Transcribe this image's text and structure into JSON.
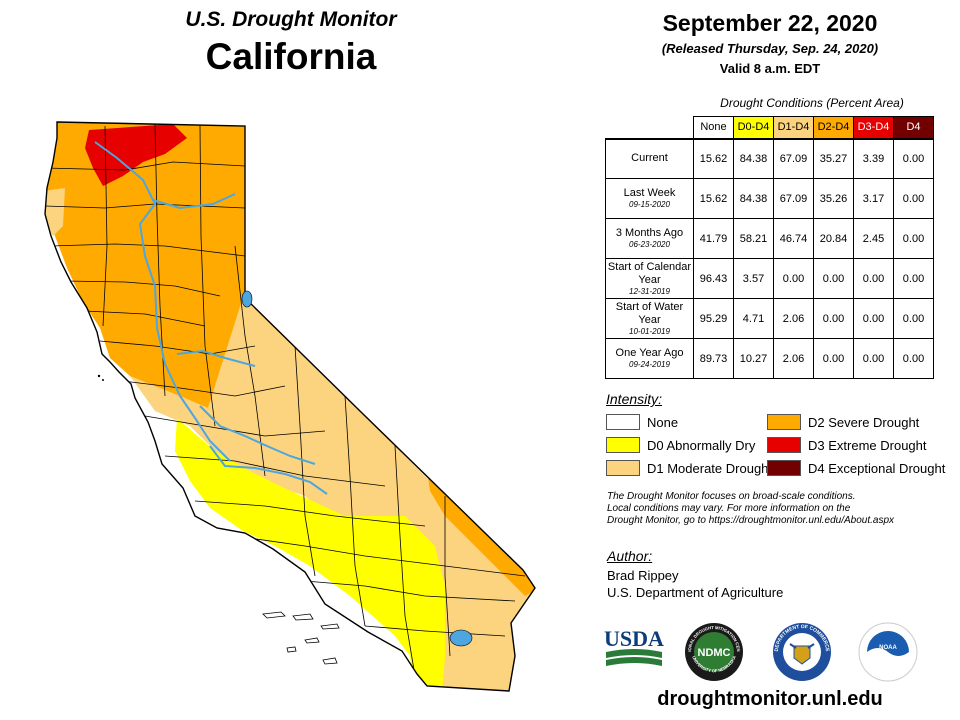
{
  "header": {
    "super_title": "U.S. Drought Monitor",
    "state": "California",
    "date": "September 22, 2020",
    "released": "(Released Thursday, Sep. 24, 2020)",
    "valid": "Valid 8 a.m. EDT"
  },
  "table": {
    "caption": "Drought Conditions (Percent Area)",
    "columns": [
      "None",
      "D0-D4",
      "D1-D4",
      "D2-D4",
      "D3-D4",
      "D4"
    ],
    "rows": [
      {
        "label": "Current",
        "sub": "",
        "values": [
          "15.62",
          "84.38",
          "67.09",
          "35.27",
          "3.39",
          "0.00"
        ]
      },
      {
        "label": "Last Week",
        "sub": "09-15-2020",
        "values": [
          "15.62",
          "84.38",
          "67.09",
          "35.26",
          "3.17",
          "0.00"
        ]
      },
      {
        "label": "3 Months Ago",
        "sub": "06-23-2020",
        "values": [
          "41.79",
          "58.21",
          "46.74",
          "20.84",
          "2.45",
          "0.00"
        ]
      },
      {
        "label": "Start of Calendar Year",
        "sub": "12-31-2019",
        "values": [
          "96.43",
          "3.57",
          "0.00",
          "0.00",
          "0.00",
          "0.00"
        ]
      },
      {
        "label": "Start of Water Year",
        "sub": "10-01-2019",
        "values": [
          "95.29",
          "4.71",
          "2.06",
          "0.00",
          "0.00",
          "0.00"
        ]
      },
      {
        "label": "One Year Ago",
        "sub": "09-24-2019",
        "values": [
          "89.73",
          "10.27",
          "2.06",
          "0.00",
          "0.00",
          "0.00"
        ]
      }
    ]
  },
  "legend": {
    "title": "Intensity:",
    "items": [
      {
        "label": "None",
        "color": "#ffffff"
      },
      {
        "label": "D0 Abnormally Dry",
        "color": "#ffff00"
      },
      {
        "label": "D1 Moderate Drought",
        "color": "#fcd37f"
      },
      {
        "label": "D2 Severe Drought",
        "color": "#ffaa00"
      },
      {
        "label": "D3 Extreme Drought",
        "color": "#e60000"
      },
      {
        "label": "D4 Exceptional Drought",
        "color": "#730000"
      }
    ]
  },
  "note": {
    "line1": "The Drought Monitor focuses on broad-scale conditions.",
    "line2": "Local conditions may vary. For more information on the",
    "line3": "Drought Monitor, go to https://droughtmonitor.unl.edu/About.aspx"
  },
  "author": {
    "title": "Author:",
    "name": "Brad Rippey",
    "org": "U.S. Department of Agriculture"
  },
  "logos": {
    "usda": "USDA",
    "ndmc": "NDMC",
    "ndmc_ring_top": "NATIONAL DROUGHT MITIGATION CENTER",
    "ndmc_ring_bottom": "UNIVERSITY OF NEBRASKA",
    "commerce_ring": "DEPARTMENT OF COMMERCE",
    "noaa": "NOAA"
  },
  "website": "droughtmonitor.unl.edu",
  "colors": {
    "none": "#ffffff",
    "d0": "#ffff00",
    "d1": "#fcd37f",
    "d2": "#ffaa00",
    "d3": "#e60000",
    "d4": "#730000",
    "water": "#4da6e0"
  }
}
